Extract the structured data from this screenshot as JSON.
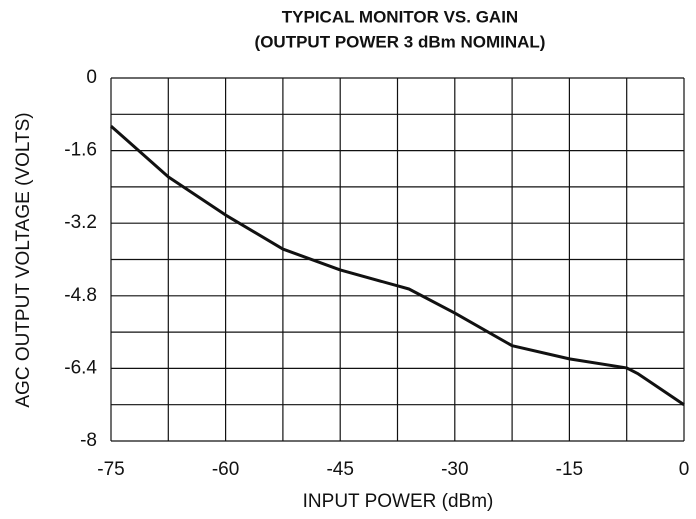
{
  "chart_data": {
    "type": "line",
    "title": "TYPICAL MONITOR VS. GAIN",
    "subtitle": "(OUTPUT POWER 3 dBm NOMINAL)",
    "x_label": "INPUT POWER (dBm)",
    "y_label": "AGC OUTPUT VOLTAGE (VOLTS)",
    "x": [
      -75,
      -67.5,
      -60,
      -52.5,
      -45,
      -37.5,
      -36,
      -30,
      -22.5,
      -15,
      -7.5,
      -6,
      0
    ],
    "series": [
      {
        "color": "#111111",
        "values": [
          -1.06,
          -2.18,
          -3.02,
          -3.77,
          -4.23,
          -4.58,
          -4.65,
          -5.18,
          -5.9,
          -6.19,
          -6.39,
          -6.52,
          -7.2
        ]
      }
    ],
    "xlim": [
      -75,
      0
    ],
    "xticks": [
      -75,
      -60,
      -45,
      -30,
      -15,
      0
    ],
    "ylim": [
      -8,
      0
    ],
    "yticks": [
      0,
      -1.6,
      -3.2,
      -4.8,
      -6.4,
      -8
    ],
    "grid": true,
    "minor_grid": true
  }
}
